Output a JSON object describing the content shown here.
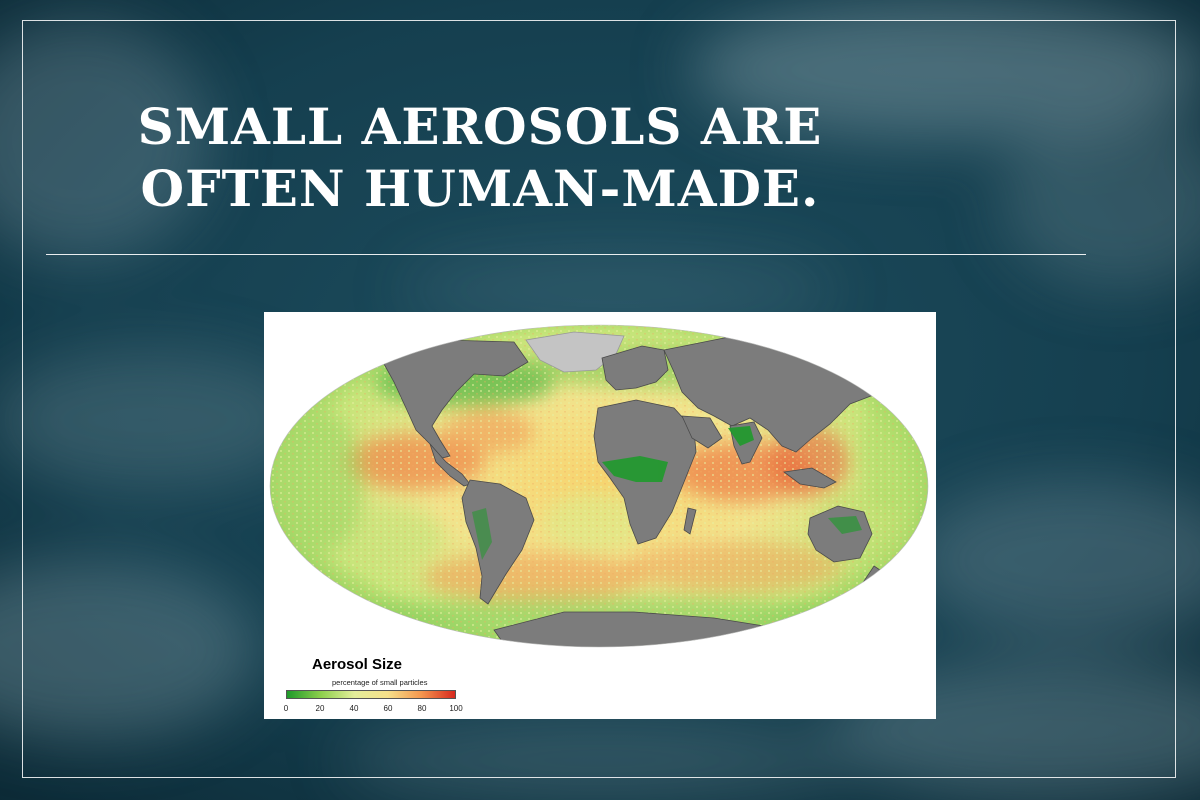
{
  "slide": {
    "title": "Small aerosols are often human-made."
  },
  "map": {
    "legend_title": "Aerosol Size",
    "legend_subtitle": "percentage of small particles",
    "scale_ticks": [
      "0",
      "20",
      "40",
      "60",
      "80",
      "100"
    ],
    "scale_range": [
      0,
      100
    ],
    "colors": {
      "low": "#1e9a2a",
      "mid": "#f6e08a",
      "high": "#d8281e",
      "land": "#7c7c7c",
      "ice": "#c4c4c4"
    }
  }
}
